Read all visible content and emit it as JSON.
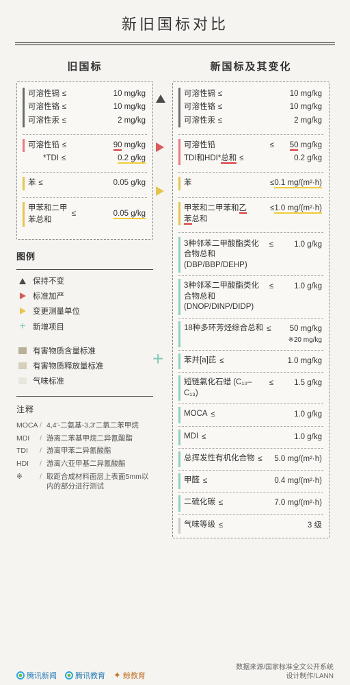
{
  "title": "新旧国标对比",
  "colors": {
    "grey_bar": "#6b6b6b",
    "pink_bar": "#e77a84",
    "yellow_bar": "#e6c54d",
    "teal_bar": "#8fd0c2",
    "lightgrey_bar": "#cbcbcb",
    "yellow_ul": "#f0cd3a",
    "red_ul": "#d83a3a",
    "plus": "#7fc9b8",
    "dash": "#888888",
    "bg": "#f5f4f0"
  },
  "left": {
    "title": "旧国标",
    "group1": [
      {
        "name": "可溶性镉",
        "op": "≤",
        "val": "10 mg/kg"
      },
      {
        "name": "可溶性铬",
        "op": "≤",
        "val": "10 mg/kg"
      },
      {
        "name": "可溶性汞",
        "op": "≤",
        "val": "2 mg/kg"
      }
    ],
    "group2": [
      {
        "name": "可溶性铅",
        "op": "≤",
        "val_pre": "",
        "val_ul": "90",
        "val_post": " mg/kg",
        "ul": "red"
      },
      {
        "name": "*TDI",
        "op": "≤",
        "val_pre": "",
        "val_ul": "0.2 g/kg",
        "val_post": "",
        "ul": "yellow",
        "indent": true
      }
    ],
    "group3": [
      {
        "name": "苯",
        "op": "≤",
        "val": "0.05 g/kg"
      }
    ],
    "group4": [
      {
        "name": "甲苯和二甲苯总和",
        "op": "≤",
        "val_ul": "0.05 g/kg",
        "ul": "yellow"
      }
    ]
  },
  "right": {
    "title": "新国标及其变化",
    "group1": [
      {
        "name": "可溶性镉",
        "op": "≤",
        "val": "10 mg/kg"
      },
      {
        "name": "可溶性铬",
        "op": "≤",
        "val": "10 mg/kg"
      },
      {
        "name": "可溶性汞",
        "op": "≤",
        "val": "2 mg/kg"
      }
    ],
    "group2": [
      {
        "name": "可溶性铅",
        "op": "≤",
        "val_ul": "50",
        "val_post": "  mg/kg",
        "ul": "red"
      },
      {
        "name_pre": "TDI和HDI*",
        "name_ul": "总和",
        "op": "≤",
        "val": "0.2  g/kg",
        "ul": "red"
      }
    ],
    "group3": [
      {
        "name": "苯",
        "op": "",
        "val_pre": "≤",
        "val_ul": "0.1 mg/(m²·h)",
        "ul": "yellow"
      }
    ],
    "group4": [
      {
        "name_pre": "甲苯和二甲苯和",
        "name_ul": "乙苯",
        "name_post": "总和",
        "op": "",
        "val_pre": "≤",
        "val_ul": "1.0 mg/(m²·h)",
        "ul": "yellow"
      }
    ],
    "new_items": [
      {
        "name": "3种邻苯二甲酸酯类化合物总和 (DBP/BBP/DEHP)",
        "op": "≤",
        "val": "1.0 g/kg",
        "bar": "teal"
      },
      {
        "name": "3种邻苯二甲酸酯类化合物总和 (DNOP/DINP/DIDP)",
        "op": "≤",
        "val": "1.0 g/kg",
        "bar": "teal"
      },
      {
        "name": "18种多环芳烃综合总和",
        "op": "≤",
        "val": "50 mg/kg",
        "val2": "※20 mg/kg",
        "bar": "teal"
      },
      {
        "name": "苯并[a]芘",
        "op": "≤",
        "val": "1.0 mg/kg",
        "bar": "teal"
      },
      {
        "name": "短链氯化石蜡 (C₁₀–C₁₃)",
        "op": "≤",
        "val": "1.5  g/kg",
        "bar": "teal"
      },
      {
        "name": "MOCA",
        "op": "≤",
        "val": "1.0  g/kg",
        "bar": "teal"
      },
      {
        "name": "MDI",
        "op": "≤",
        "val": "1.0  g/kg",
        "bar": "teal"
      },
      {
        "name": "总挥发性有机化合物",
        "op": "≤",
        "val": "5.0 mg/(m²·h)",
        "bar": "teal"
      },
      {
        "name": "甲醛",
        "op": "≤",
        "val": "0.4 mg/(m²·h)",
        "bar": "teal"
      },
      {
        "name": "二硫化碳",
        "op": "≤",
        "val": "7.0 mg/(m²·h)",
        "bar": "teal"
      },
      {
        "name": "气味等级",
        "op": "≤",
        "val": "3  级",
        "bar": "lgrey"
      }
    ]
  },
  "legend": {
    "title": "图例",
    "items": [
      {
        "icon": "tri-up",
        "color": "#4a4a4a",
        "label": "保持不变"
      },
      {
        "icon": "tri-right",
        "color": "#d85a5a",
        "label": "标准加严"
      },
      {
        "icon": "tri-right",
        "color": "#e6c54d",
        "label": "变更测量单位"
      },
      {
        "icon": "plus",
        "color": "#7fc9b8",
        "label": "新增项目"
      }
    ],
    "swatches": [
      {
        "color": "#b8b097",
        "label": "有害物质含量标准"
      },
      {
        "color": "#d6d0bc",
        "label": "有害物质释放量标准"
      },
      {
        "color": "#e8e6dd",
        "label": "气味标准"
      }
    ]
  },
  "notes": {
    "title": "注释",
    "rows": [
      {
        "k": "MOCA",
        "v": "4,4'-二氨基-3,3'二氯二苯甲烷"
      },
      {
        "k": "MDI",
        "v": "游离二苯基甲烷二异氰酸酯"
      },
      {
        "k": "TDI",
        "v": "游离甲苯二异氰酸酯"
      },
      {
        "k": "HDI",
        "v": "游离六亚甲基二异氰酸酯"
      },
      {
        "k": "※",
        "v": "取距合成材料面层上表面5mm以内的部分进行测试"
      }
    ]
  },
  "footer": {
    "logos": [
      {
        "text": "腾讯新闻",
        "ring": "#2aa7e0",
        "dot": "#6bbf3a"
      },
      {
        "text": "腾讯教育",
        "ring": "#2aa7e0",
        "dot": "#6bbf3a"
      },
      {
        "text": "鲸教育",
        "ring": "#d08a2a",
        "dot": "#d08a2a"
      }
    ],
    "source": "数据来源/国家标准全文公开系统",
    "design": "设计制作/LANN"
  }
}
